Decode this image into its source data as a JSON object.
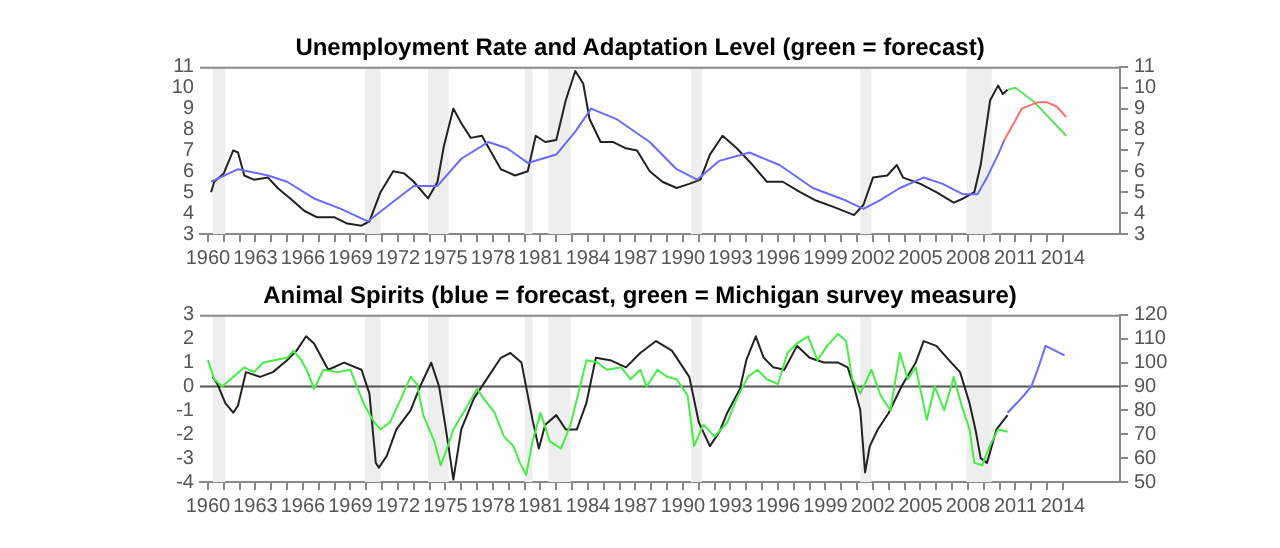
{
  "chart_data": [
    {
      "type": "line",
      "title": "Unemployment Rate and Adaptation Level (green = forecast)",
      "legend": false,
      "grid": false,
      "marker": "none",
      "xlim": [
        1959.5,
        2017.6
      ],
      "xticks": [
        1960,
        {
          "value": 1961,
          "label": null
        },
        {
          "value": 1962,
          "label": null
        },
        1963,
        {
          "value": 1964,
          "label": null
        },
        {
          "value": 1965,
          "label": null
        },
        1966,
        {
          "value": 1967,
          "label": null
        },
        {
          "value": 1968,
          "label": null
        },
        1969,
        {
          "value": 1970,
          "label": null
        },
        {
          "value": 1971,
          "label": null
        },
        1972,
        {
          "value": 1973,
          "label": null
        },
        {
          "value": 1974,
          "label": null
        },
        1975,
        {
          "value": 1976,
          "label": null
        },
        {
          "value": 1977,
          "label": null
        },
        1978,
        {
          "value": 1979,
          "label": null
        },
        {
          "value": 1980,
          "label": null
        },
        1981,
        {
          "value": 1982,
          "label": null
        },
        {
          "value": 1983,
          "label": null
        },
        1984,
        {
          "value": 1985,
          "label": null
        },
        {
          "value": 1986,
          "label": null
        },
        1987,
        {
          "value": 1988,
          "label": null
        },
        {
          "value": 1989,
          "label": null
        },
        1990,
        {
          "value": 1991,
          "label": null
        },
        {
          "value": 1992,
          "label": null
        },
        1993,
        {
          "value": 1994,
          "label": null
        },
        {
          "value": 1995,
          "label": null
        },
        1996,
        {
          "value": 1997,
          "label": null
        },
        {
          "value": 1998,
          "label": null
        },
        1999,
        {
          "value": 2000,
          "label": null
        },
        {
          "value": 2001,
          "label": null
        },
        2002,
        {
          "value": 2003,
          "label": null
        },
        {
          "value": 2004,
          "label": null
        },
        2005,
        {
          "value": 2006,
          "label": null
        },
        {
          "value": 2007,
          "label": null
        },
        2008,
        {
          "value": 2009,
          "label": null
        },
        {
          "value": 2010,
          "label": null
        },
        2011,
        {
          "value": 2012,
          "label": null
        },
        {
          "value": 2013,
          "label": null
        },
        2014
      ],
      "ylim": [
        3,
        11
      ],
      "yticks": [
        3,
        4,
        5,
        6,
        7,
        8,
        9,
        10,
        11
      ],
      "y2lim": [
        3,
        11
      ],
      "y2ticks": [
        3,
        4,
        5,
        6,
        7,
        8,
        9,
        10,
        11
      ],
      "bands": [
        {
          "axis": "x",
          "from": 1960.3,
          "to": 1961.1,
          "color": "#eeeeee"
        },
        {
          "axis": "x",
          "from": 1969.9,
          "to": 1970.9,
          "color": "#eeeeee"
        },
        {
          "axis": "x",
          "from": 1973.9,
          "to": 1975.2,
          "color": "#eeeeee"
        },
        {
          "axis": "x",
          "from": 1980.0,
          "to": 1980.5,
          "color": "#eeeeee"
        },
        {
          "axis": "x",
          "from": 1981.5,
          "to": 1982.9,
          "color": "#eeeeee"
        },
        {
          "axis": "x",
          "from": 1990.5,
          "to": 1991.2,
          "color": "#eeeeee"
        },
        {
          "axis": "x",
          "from": 2001.2,
          "to": 2001.9,
          "color": "#eeeeee"
        },
        {
          "axis": "x",
          "from": 2007.9,
          "to": 2009.5,
          "color": "#eeeeee"
        }
      ],
      "series": [
        {
          "color": "#6a6aff",
          "x": [
            1960.2,
            1961.9,
            1963.8,
            1965.0,
            1966.7,
            1968.4,
            1970.1,
            1971.8,
            1973.0,
            1974.5,
            1976.0,
            1977.7,
            1978.9,
            1980.2,
            1982.0,
            1983.2,
            1984.2,
            1985.8,
            1987.9,
            1989.6,
            1990.9,
            1992.3,
            1994.2,
            1996.1,
            1998.2,
            2000.3,
            2001.4,
            2002.4,
            2003.7,
            2005.2,
            2006.4,
            2007.7,
            2008.6,
            2009.2,
            2009.9,
            2010.3
          ],
          "values": [
            5.5,
            6.1,
            5.8,
            5.5,
            4.7,
            4.2,
            3.6,
            4.6,
            5.3,
            5.3,
            6.6,
            7.4,
            7.1,
            6.4,
            6.8,
            7.9,
            9.0,
            8.5,
            7.4,
            6.1,
            5.6,
            6.5,
            6.9,
            6.3,
            5.2,
            4.6,
            4.2,
            4.6,
            5.2,
            5.7,
            5.4,
            4.9,
            4.9,
            5.7,
            6.8,
            7.5
          ]
        },
        {
          "color": "#ff6f6f",
          "x": [
            2010.3,
            2011.4,
            2012.4,
            2013.0,
            2013.6,
            2014.2
          ],
          "values": [
            7.5,
            9.0,
            9.3,
            9.3,
            9.1,
            8.6
          ]
        },
        {
          "color": "#5fe05f",
          "x": [
            2010.5,
            2011.0,
            2012.2,
            2013.2,
            2014.2
          ],
          "values": [
            9.9,
            10.0,
            9.3,
            8.5,
            7.7
          ]
        },
        {
          "color": "#222222",
          "x": [
            1960.2,
            1960.4,
            1961.0,
            1961.6,
            1961.9,
            1962.3,
            1962.9,
            1963.8,
            1964.4,
            1965.2,
            1966.1,
            1966.9,
            1968.0,
            1968.8,
            1969.7,
            1970.2,
            1970.9,
            1971.7,
            1972.4,
            1973.0,
            1973.9,
            1974.5,
            1974.9,
            1975.5,
            1976.0,
            1976.6,
            1977.3,
            1977.9,
            1978.5,
            1979.4,
            1980.2,
            1980.7,
            1981.3,
            1982.0,
            1982.6,
            1983.2,
            1983.7,
            1984.1,
            1984.8,
            1985.6,
            1986.4,
            1987.1,
            1987.9,
            1988.7,
            1989.6,
            1990.4,
            1991.1,
            1991.7,
            1992.5,
            1993.4,
            1994.4,
            1995.3,
            1996.3,
            1997.4,
            1998.4,
            1999.5,
            2000.5,
            2000.8,
            2001.4,
            2002.0,
            2002.9,
            2003.5,
            2003.9,
            2005.0,
            2006.0,
            2007.1,
            2007.7,
            2008.4,
            2008.8,
            2009.4,
            2009.9,
            2010.2,
            2010.5
          ],
          "values": [
            5.0,
            5.5,
            5.9,
            7.0,
            6.9,
            5.8,
            5.6,
            5.7,
            5.2,
            4.7,
            4.1,
            3.8,
            3.8,
            3.5,
            3.4,
            3.6,
            5.0,
            6.0,
            5.9,
            5.5,
            4.7,
            5.5,
            7.2,
            9.0,
            8.3,
            7.6,
            7.7,
            6.9,
            6.1,
            5.8,
            6.0,
            7.7,
            7.4,
            7.5,
            9.4,
            10.8,
            10.2,
            8.5,
            7.4,
            7.4,
            7.1,
            7.0,
            6.0,
            5.5,
            5.2,
            5.4,
            5.6,
            6.8,
            7.7,
            7.1,
            6.3,
            5.5,
            5.5,
            5.0,
            4.6,
            4.3,
            4.0,
            3.9,
            4.4,
            5.7,
            5.8,
            6.3,
            5.7,
            5.4,
            5.0,
            4.5,
            4.7,
            5.0,
            6.3,
            9.4,
            10.1,
            9.7,
            9.9
          ]
        }
      ]
    },
    {
      "type": "line",
      "title": "Animal Spirits (blue = forecast, green = Michigan survey measure)",
      "legend": false,
      "grid": false,
      "marker": "none",
      "xlim": [
        1959.5,
        2017.6
      ],
      "xticks": [
        1960,
        {
          "value": 1961,
          "label": null
        },
        {
          "value": 1962,
          "label": null
        },
        1963,
        {
          "value": 1964,
          "label": null
        },
        {
          "value": 1965,
          "label": null
        },
        1966,
        {
          "value": 1967,
          "label": null
        },
        {
          "value": 1968,
          "label": null
        },
        1969,
        {
          "value": 1970,
          "label": null
        },
        {
          "value": 1971,
          "label": null
        },
        1972,
        {
          "value": 1973,
          "label": null
        },
        {
          "value": 1974,
          "label": null
        },
        1975,
        {
          "value": 1976,
          "label": null
        },
        {
          "value": 1977,
          "label": null
        },
        1978,
        {
          "value": 1979,
          "label": null
        },
        {
          "value": 1980,
          "label": null
        },
        1981,
        {
          "value": 1982,
          "label": null
        },
        {
          "value": 1983,
          "label": null
        },
        1984,
        {
          "value": 1985,
          "label": null
        },
        {
          "value": 1986,
          "label": null
        },
        1987,
        {
          "value": 1988,
          "label": null
        },
        {
          "value": 1989,
          "label": null
        },
        1990,
        {
          "value": 1991,
          "label": null
        },
        {
          "value": 1992,
          "label": null
        },
        1993,
        {
          "value": 1994,
          "label": null
        },
        {
          "value": 1995,
          "label": null
        },
        1996,
        {
          "value": 1997,
          "label": null
        },
        {
          "value": 1998,
          "label": null
        },
        1999,
        {
          "value": 2000,
          "label": null
        },
        {
          "value": 2001,
          "label": null
        },
        2002,
        {
          "value": 2003,
          "label": null
        },
        {
          "value": 2004,
          "label": null
        },
        2005,
        {
          "value": 2006,
          "label": null
        },
        {
          "value": 2007,
          "label": null
        },
        2008,
        {
          "value": 2009,
          "label": null
        },
        {
          "value": 2010,
          "label": null
        },
        2011,
        {
          "value": 2012,
          "label": null
        },
        {
          "value": 2013,
          "label": null
        },
        2014
      ],
      "ylim": [
        -4,
        3
      ],
      "yticks": [
        -4,
        -3,
        -2,
        -1,
        0,
        1,
        2,
        3
      ],
      "y2lim": [
        50,
        120
      ],
      "y2ticks": [
        50,
        60,
        70,
        80,
        90,
        100,
        110,
        120
      ],
      "bands": [
        {
          "axis": "x",
          "from": 1960.3,
          "to": 1961.1,
          "color": "#eeeeee"
        },
        {
          "axis": "x",
          "from": 1969.9,
          "to": 1970.9,
          "color": "#eeeeee"
        },
        {
          "axis": "x",
          "from": 1973.9,
          "to": 1975.2,
          "color": "#eeeeee"
        },
        {
          "axis": "x",
          "from": 1980.0,
          "to": 1980.5,
          "color": "#eeeeee"
        },
        {
          "axis": "x",
          "from": 1981.5,
          "to": 1982.9,
          "color": "#eeeeee"
        },
        {
          "axis": "x",
          "from": 1990.5,
          "to": 1991.2,
          "color": "#eeeeee"
        },
        {
          "axis": "x",
          "from": 2001.2,
          "to": 2001.9,
          "color": "#eeeeee"
        },
        {
          "axis": "x",
          "from": 2007.9,
          "to": 2009.5,
          "color": "#eeeeee"
        }
      ],
      "ref_lines": [
        {
          "axis": "y",
          "value": 0,
          "color": "#555555"
        }
      ],
      "series": [
        {
          "color": "#44ee44",
          "axis": "y2",
          "x": [
            1960.0,
            1960.4,
            1960.9,
            1961.6,
            1962.3,
            1962.9,
            1963.5,
            1964.2,
            1965.0,
            1965.4,
            1965.9,
            1966.3,
            1966.7,
            1967.3,
            1968.2,
            1969.0,
            1969.4,
            1969.9,
            1970.5,
            1970.9,
            1971.5,
            1972.2,
            1972.8,
            1973.2,
            1973.6,
            1974.3,
            1974.7,
            1975.1,
            1975.5,
            1976.4,
            1977.0,
            1977.4,
            1978.1,
            1978.7,
            1979.3,
            1979.7,
            1980.1,
            1980.5,
            1981.0,
            1981.6,
            1982.3,
            1982.9,
            1983.5,
            1983.9,
            1984.6,
            1985.2,
            1986.1,
            1986.7,
            1987.3,
            1987.7,
            1988.4,
            1989.0,
            1989.6,
            1990.3,
            1990.7,
            1991.3,
            1992.0,
            1992.8,
            1993.4,
            1994.1,
            1994.7,
            1995.3,
            1996.0,
            1996.6,
            1997.2,
            1997.9,
            1998.5,
            1999.1,
            1999.8,
            2000.3,
            2000.7,
            2001.2,
            2001.9,
            2002.5,
            2003.1,
            2003.7,
            2004.2,
            2004.7,
            2005.4,
            2005.9,
            2006.5,
            2007.1,
            2007.6,
            2008.1,
            2008.4,
            2008.9,
            2009.3,
            2009.9,
            2010.5
          ],
          "values": [
            101,
            93,
            90,
            94,
            98,
            96,
            100,
            101,
            102,
            105,
            101,
            96,
            89,
            97,
            96,
            97,
            90,
            82,
            75,
            72,
            75,
            85,
            94,
            91,
            78,
            67,
            57,
            64,
            72,
            82,
            89,
            85,
            79,
            69,
            65,
            58,
            53,
            67,
            79,
            67,
            64,
            74,
            90,
            101,
            100,
            97,
            98,
            93,
            97,
            90,
            97,
            94,
            93,
            86,
            65,
            74,
            69,
            75,
            85,
            94,
            97,
            93,
            91,
            104,
            108,
            111,
            101,
            107,
            112,
            109,
            93,
            87,
            97,
            86,
            80,
            104,
            93,
            98,
            76,
            90,
            80,
            94,
            82,
            72,
            58,
            57,
            64,
            72,
            71
          ]
        },
        {
          "color": "#222222",
          "x": [
            1960.3,
            1960.6,
            1961.1,
            1961.6,
            1961.9,
            1962.4,
            1963.3,
            1964.1,
            1965.0,
            1965.6,
            1966.2,
            1966.7,
            1967.6,
            1968.6,
            1969.7,
            1970.2,
            1970.6,
            1970.8,
            1971.3,
            1971.9,
            1972.8,
            1973.4,
            1974.1,
            1974.6,
            1975.1,
            1975.5,
            1976.0,
            1976.8,
            1977.7,
            1978.5,
            1979.1,
            1979.8,
            1980.5,
            1980.9,
            1981.3,
            1982.0,
            1982.6,
            1983.3,
            1983.9,
            1984.5,
            1985.4,
            1986.4,
            1987.3,
            1988.3,
            1989.3,
            1990.4,
            1991.0,
            1991.7,
            1992.3,
            1992.8,
            1993.6,
            1994.0,
            1994.6,
            1995.1,
            1995.7,
            1996.4,
            1997.2,
            1998.0,
            1998.9,
            1999.8,
            2000.4,
            2000.8,
            2001.2,
            2001.5,
            2001.8,
            2002.3,
            2003.0,
            2003.8,
            2004.7,
            2005.2,
            2006.0,
            2006.8,
            2007.5,
            2008.1,
            2008.5,
            2008.8,
            2009.2,
            2009.8,
            2010.5
          ],
          "values": [
            0.4,
            0.1,
            -0.7,
            -1.1,
            -0.8,
            0.6,
            0.4,
            0.6,
            1.1,
            1.5,
            2.1,
            1.8,
            0.7,
            1.0,
            0.7,
            -0.3,
            -3.2,
            -3.4,
            -2.9,
            -1.8,
            -1.0,
            0.0,
            1.0,
            0.0,
            -2.1,
            -3.9,
            -1.8,
            -0.5,
            0.4,
            1.2,
            1.4,
            1.0,
            -1.4,
            -2.6,
            -1.6,
            -1.2,
            -1.8,
            -1.8,
            -0.7,
            1.2,
            1.1,
            0.8,
            1.4,
            1.9,
            1.5,
            0.4,
            -1.5,
            -2.5,
            -1.9,
            -1.1,
            -0.1,
            1.1,
            2.1,
            1.2,
            0.8,
            0.7,
            1.7,
            1.2,
            1.0,
            1.0,
            0.8,
            0.0,
            -1.0,
            -3.6,
            -2.5,
            -1.8,
            -1.1,
            0.0,
            1.0,
            1.9,
            1.7,
            1.1,
            0.6,
            -0.7,
            -1.9,
            -3.0,
            -3.2,
            -1.8,
            -1.2
          ]
        },
        {
          "color": "#6a6aff",
          "axis": "y2",
          "x": [
            2010.5,
            2011.5,
            2012.0,
            2012.4,
            2012.9,
            2014.1
          ],
          "values": [
            79,
            86,
            90,
            97,
            107,
            103
          ]
        }
      ]
    }
  ]
}
